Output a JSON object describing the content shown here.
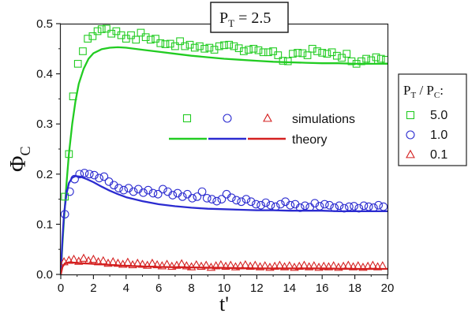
{
  "colors": {
    "green": "#22cc22",
    "blue": "#2b2bd0",
    "red": "#d42020",
    "axis": "#222222"
  },
  "annotation": {
    "main": "P",
    "sub": "T",
    "rest": " = 2.5"
  },
  "series_legend": {
    "markers": [
      {
        "symbol": "square",
        "color": "#22cc22"
      },
      {
        "symbol": "circle",
        "color": "#2b2bd0"
      },
      {
        "symbol": "triangle",
        "color": "#d42020"
      }
    ],
    "simulations_label": "simulations",
    "theory_label": "theory"
  },
  "ratio_legend": {
    "title": {
      "p1": "P",
      "s1": "T",
      "mid": " / P",
      "s2": "C",
      "end": ":"
    },
    "entries": [
      {
        "label": "5.0",
        "symbol": "square",
        "color": "#22cc22"
      },
      {
        "label": "1.0",
        "symbol": "circle",
        "color": "#2b2bd0"
      },
      {
        "label": "0.1",
        "symbol": "triangle",
        "color": "#d42020"
      }
    ]
  },
  "chart_data": {
    "type": "scatter",
    "title": "",
    "xlabel": "t'",
    "ylabel": {
      "main": "Φ",
      "sub": "C"
    },
    "xlim": [
      0,
      20
    ],
    "ylim": [
      0,
      0.5
    ],
    "xticks": [
      0,
      2,
      4,
      6,
      8,
      10,
      12,
      14,
      16,
      18,
      20
    ],
    "xtick_labels": [
      "0",
      "2",
      "4",
      "6",
      "8",
      "10",
      "12",
      "14",
      "16",
      "18",
      "20"
    ],
    "yticks": [
      0,
      0.1,
      0.2,
      0.3,
      0.4,
      0.5
    ],
    "ytick_labels": [
      "0.0",
      "0.1",
      "0.2",
      "0.3",
      "0.4",
      "0.5"
    ],
    "grid": false,
    "series": [
      {
        "name": "5.0",
        "kind": "simulations",
        "marker": "square",
        "color": "#22cc22",
        "points": [
          [
            0.25,
            0.155
          ],
          [
            0.5,
            0.24
          ],
          [
            0.75,
            0.355
          ],
          [
            1.05,
            0.42
          ],
          [
            1.35,
            0.445
          ],
          [
            1.65,
            0.47
          ],
          [
            1.95,
            0.475
          ],
          [
            2.25,
            0.485
          ],
          [
            2.5,
            0.489
          ],
          [
            2.8,
            0.49
          ],
          [
            3.1,
            0.48
          ],
          [
            3.4,
            0.485
          ],
          [
            3.7,
            0.477
          ],
          [
            4.0,
            0.47
          ],
          [
            4.3,
            0.477
          ],
          [
            4.6,
            0.468
          ],
          [
            4.9,
            0.482
          ],
          [
            5.2,
            0.473
          ],
          [
            5.5,
            0.468
          ],
          [
            5.8,
            0.47
          ],
          [
            6.1,
            0.461
          ],
          [
            6.4,
            0.459
          ],
          [
            6.7,
            0.46
          ],
          [
            7.0,
            0.455
          ],
          [
            7.3,
            0.465
          ],
          [
            7.6,
            0.455
          ],
          [
            7.9,
            0.458
          ],
          [
            8.2,
            0.452
          ],
          [
            8.5,
            0.455
          ],
          [
            8.8,
            0.45
          ],
          [
            9.1,
            0.452
          ],
          [
            9.4,
            0.448
          ],
          [
            9.7,
            0.455
          ],
          [
            10.0,
            0.457
          ],
          [
            10.3,
            0.458
          ],
          [
            10.6,
            0.455
          ],
          [
            10.9,
            0.451
          ],
          [
            11.2,
            0.445
          ],
          [
            11.5,
            0.448
          ],
          [
            11.8,
            0.45
          ],
          [
            12.1,
            0.447
          ],
          [
            12.4,
            0.443
          ],
          [
            12.7,
            0.443
          ],
          [
            13.0,
            0.445
          ],
          [
            13.3,
            0.437
          ],
          [
            13.6,
            0.426
          ],
          [
            13.9,
            0.425
          ],
          [
            14.2,
            0.44
          ],
          [
            14.5,
            0.442
          ],
          [
            14.8,
            0.441
          ],
          [
            15.1,
            0.437
          ],
          [
            15.4,
            0.45
          ],
          [
            15.7,
            0.445
          ],
          [
            16.0,
            0.442
          ],
          [
            16.3,
            0.44
          ],
          [
            16.6,
            0.443
          ],
          [
            16.9,
            0.436
          ],
          [
            17.2,
            0.432
          ],
          [
            17.5,
            0.44
          ],
          [
            17.8,
            0.425
          ],
          [
            18.1,
            0.42
          ],
          [
            18.4,
            0.425
          ],
          [
            18.7,
            0.43
          ],
          [
            19.0,
            0.427
          ],
          [
            19.3,
            0.433
          ],
          [
            19.6,
            0.43
          ],
          [
            19.9,
            0.428
          ]
        ]
      },
      {
        "name": "1.0",
        "kind": "simulations",
        "marker": "circle",
        "color": "#2b2bd0",
        "points": [
          [
            0.25,
            0.12
          ],
          [
            0.55,
            0.165
          ],
          [
            0.85,
            0.19
          ],
          [
            1.15,
            0.2
          ],
          [
            1.45,
            0.202
          ],
          [
            1.75,
            0.2
          ],
          [
            2.05,
            0.198
          ],
          [
            2.35,
            0.192
          ],
          [
            2.65,
            0.195
          ],
          [
            2.95,
            0.185
          ],
          [
            3.25,
            0.178
          ],
          [
            3.55,
            0.172
          ],
          [
            3.85,
            0.168
          ],
          [
            4.15,
            0.172
          ],
          [
            4.45,
            0.165
          ],
          [
            4.75,
            0.17
          ],
          [
            5.05,
            0.163
          ],
          [
            5.35,
            0.168
          ],
          [
            5.65,
            0.162
          ],
          [
            5.95,
            0.16
          ],
          [
            6.25,
            0.17
          ],
          [
            6.55,
            0.165
          ],
          [
            6.85,
            0.158
          ],
          [
            7.15,
            0.162
          ],
          [
            7.45,
            0.155
          ],
          [
            7.75,
            0.16
          ],
          [
            8.05,
            0.152
          ],
          [
            8.35,
            0.155
          ],
          [
            8.65,
            0.165
          ],
          [
            8.95,
            0.152
          ],
          [
            9.25,
            0.15
          ],
          [
            9.55,
            0.146
          ],
          [
            9.85,
            0.15
          ],
          [
            10.15,
            0.16
          ],
          [
            10.45,
            0.153
          ],
          [
            10.75,
            0.148
          ],
          [
            11.05,
            0.145
          ],
          [
            11.35,
            0.15
          ],
          [
            11.65,
            0.145
          ],
          [
            11.95,
            0.14
          ],
          [
            12.25,
            0.138
          ],
          [
            12.55,
            0.143
          ],
          [
            12.85,
            0.138
          ],
          [
            13.15,
            0.135
          ],
          [
            13.45,
            0.14
          ],
          [
            13.75,
            0.145
          ],
          [
            14.05,
            0.138
          ],
          [
            14.35,
            0.14
          ],
          [
            14.65,
            0.133
          ],
          [
            14.95,
            0.137
          ],
          [
            15.25,
            0.134
          ],
          [
            15.55,
            0.142
          ],
          [
            15.85,
            0.136
          ],
          [
            16.15,
            0.14
          ],
          [
            16.45,
            0.138
          ],
          [
            16.75,
            0.133
          ],
          [
            17.05,
            0.137
          ],
          [
            17.35,
            0.132
          ],
          [
            17.65,
            0.135
          ],
          [
            17.95,
            0.136
          ],
          [
            18.25,
            0.132
          ],
          [
            18.55,
            0.137
          ],
          [
            18.85,
            0.135
          ],
          [
            19.15,
            0.133
          ],
          [
            19.45,
            0.138
          ],
          [
            19.75,
            0.135
          ]
        ]
      },
      {
        "name": "0.1",
        "kind": "simulations",
        "marker": "triangle",
        "color": "#d42020",
        "points": [
          [
            0.2,
            0.025
          ],
          [
            0.5,
            0.028
          ],
          [
            0.8,
            0.03
          ],
          [
            1.1,
            0.026
          ],
          [
            1.4,
            0.032
          ],
          [
            1.7,
            0.027
          ],
          [
            2.0,
            0.03
          ],
          [
            2.3,
            0.025
          ],
          [
            2.6,
            0.027
          ],
          [
            2.9,
            0.022
          ],
          [
            3.2,
            0.025
          ],
          [
            3.5,
            0.022
          ],
          [
            3.8,
            0.02
          ],
          [
            4.1,
            0.024
          ],
          [
            4.4,
            0.019
          ],
          [
            4.7,
            0.022
          ],
          [
            5.0,
            0.02
          ],
          [
            5.3,
            0.018
          ],
          [
            5.6,
            0.022
          ],
          [
            5.9,
            0.019
          ],
          [
            6.2,
            0.017
          ],
          [
            6.5,
            0.02
          ],
          [
            6.8,
            0.016
          ],
          [
            7.1,
            0.018
          ],
          [
            7.4,
            0.021
          ],
          [
            7.7,
            0.017
          ],
          [
            8.0,
            0.015
          ],
          [
            8.3,
            0.019
          ],
          [
            8.6,
            0.016
          ],
          [
            8.9,
            0.018
          ],
          [
            9.2,
            0.014
          ],
          [
            9.5,
            0.017
          ],
          [
            9.8,
            0.019
          ],
          [
            10.1,
            0.016
          ],
          [
            10.4,
            0.018
          ],
          [
            10.7,
            0.015
          ],
          [
            11.0,
            0.017
          ],
          [
            11.3,
            0.019
          ],
          [
            11.6,
            0.016
          ],
          [
            11.9,
            0.018
          ],
          [
            12.2,
            0.015
          ],
          [
            12.5,
            0.017
          ],
          [
            12.8,
            0.014
          ],
          [
            13.1,
            0.016
          ],
          [
            13.4,
            0.018
          ],
          [
            13.7,
            0.015
          ],
          [
            14.0,
            0.017
          ],
          [
            14.3,
            0.014
          ],
          [
            14.6,
            0.016
          ],
          [
            14.9,
            0.018
          ],
          [
            15.2,
            0.015
          ],
          [
            15.5,
            0.017
          ],
          [
            15.8,
            0.014
          ],
          [
            16.1,
            0.016
          ],
          [
            16.4,
            0.015
          ],
          [
            16.7,
            0.017
          ],
          [
            17.0,
            0.014
          ],
          [
            17.3,
            0.016
          ],
          [
            17.6,
            0.018
          ],
          [
            17.9,
            0.015
          ],
          [
            18.2,
            0.017
          ],
          [
            18.5,
            0.014
          ],
          [
            18.8,
            0.016
          ],
          [
            19.1,
            0.018
          ],
          [
            19.4,
            0.015
          ],
          [
            19.7,
            0.017
          ]
        ]
      },
      {
        "name": "5.0",
        "kind": "theory",
        "color": "#22cc22",
        "points": [
          [
            0,
            0
          ],
          [
            0.1,
            0.06
          ],
          [
            0.2,
            0.11
          ],
          [
            0.35,
            0.18
          ],
          [
            0.5,
            0.24
          ],
          [
            0.7,
            0.3
          ],
          [
            0.9,
            0.345
          ],
          [
            1.1,
            0.38
          ],
          [
            1.4,
            0.41
          ],
          [
            1.7,
            0.43
          ],
          [
            2.0,
            0.441
          ],
          [
            2.5,
            0.449
          ],
          [
            3.0,
            0.452
          ],
          [
            3.5,
            0.453
          ],
          [
            4.0,
            0.452
          ],
          [
            5.0,
            0.448
          ],
          [
            6.0,
            0.444
          ],
          [
            7.0,
            0.44
          ],
          [
            8.0,
            0.436
          ],
          [
            9.0,
            0.433
          ],
          [
            10.0,
            0.43
          ],
          [
            11.0,
            0.428
          ],
          [
            12.0,
            0.426
          ],
          [
            13.0,
            0.424
          ],
          [
            14.0,
            0.423
          ],
          [
            15.0,
            0.422
          ],
          [
            16.0,
            0.421
          ],
          [
            17.0,
            0.421
          ],
          [
            18.0,
            0.42
          ],
          [
            19.0,
            0.42
          ],
          [
            20.0,
            0.42
          ]
        ]
      },
      {
        "name": "1.0",
        "kind": "theory",
        "color": "#2b2bd0",
        "points": [
          [
            0,
            0
          ],
          [
            0.1,
            0.07
          ],
          [
            0.2,
            0.12
          ],
          [
            0.35,
            0.16
          ],
          [
            0.5,
            0.182
          ],
          [
            0.7,
            0.193
          ],
          [
            0.9,
            0.196
          ],
          [
            1.2,
            0.195
          ],
          [
            1.6,
            0.19
          ],
          [
            2.0,
            0.184
          ],
          [
            2.5,
            0.175
          ],
          [
            3.0,
            0.167
          ],
          [
            3.5,
            0.16
          ],
          [
            4.0,
            0.154
          ],
          [
            5.0,
            0.146
          ],
          [
            6.0,
            0.14
          ],
          [
            7.0,
            0.136
          ],
          [
            8.0,
            0.133
          ],
          [
            9.0,
            0.131
          ],
          [
            10.0,
            0.13
          ],
          [
            11.0,
            0.129
          ],
          [
            12.0,
            0.128
          ],
          [
            13.0,
            0.128
          ],
          [
            14.0,
            0.127
          ],
          [
            15.0,
            0.127
          ],
          [
            16.0,
            0.127
          ],
          [
            17.0,
            0.126
          ],
          [
            18.0,
            0.126
          ],
          [
            19.0,
            0.126
          ],
          [
            20.0,
            0.126
          ]
        ]
      },
      {
        "name": "0.1",
        "kind": "theory",
        "color": "#d42020",
        "points": [
          [
            0,
            0
          ],
          [
            0.1,
            0.015
          ],
          [
            0.25,
            0.022
          ],
          [
            0.5,
            0.024
          ],
          [
            1.0,
            0.023
          ],
          [
            2.0,
            0.021
          ],
          [
            3.0,
            0.019
          ],
          [
            4.0,
            0.017
          ],
          [
            6.0,
            0.015
          ],
          [
            8.0,
            0.014
          ],
          [
            10.0,
            0.013
          ],
          [
            12.0,
            0.012
          ],
          [
            14.0,
            0.012
          ],
          [
            16.0,
            0.012
          ],
          [
            18.0,
            0.011
          ],
          [
            20.0,
            0.011
          ]
        ]
      }
    ]
  }
}
